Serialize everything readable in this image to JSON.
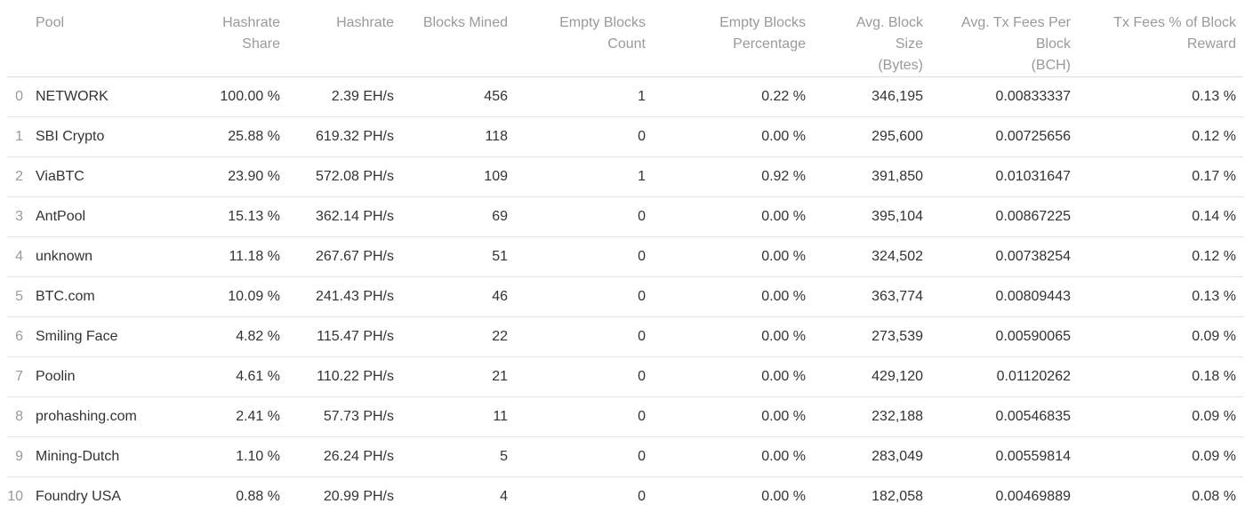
{
  "table": {
    "headers": {
      "index": "",
      "pool": "Pool",
      "hashrate_share": [
        "Hashrate",
        "Share"
      ],
      "hashrate": [
        "Hashrate"
      ],
      "blocks_mined": [
        "Blocks Mined"
      ],
      "empty_blocks_count": [
        "Empty Blocks",
        "Count"
      ],
      "empty_blocks_percentage": [
        "Empty Blocks",
        "Percentage"
      ],
      "avg_block_size": [
        "Avg. Block",
        "Size",
        "(Bytes)"
      ],
      "avg_tx_fees": [
        "Avg. Tx Fees Per",
        "Block",
        "(BCH)"
      ],
      "tx_fees_pct": [
        "Tx Fees % of Block",
        "Reward"
      ]
    },
    "rows": [
      {
        "idx": "0",
        "pool": "NETWORK",
        "share": "100.00 %",
        "hashrate": "2.39 EH/s",
        "blocks": "456",
        "empty": "1",
        "empty_pct": "0.22 %",
        "size": "346,195",
        "fees": "0.00833337",
        "fee_pct": "0.13 %"
      },
      {
        "idx": "1",
        "pool": "SBI Crypto",
        "share": "25.88 %",
        "hashrate": "619.32 PH/s",
        "blocks": "118",
        "empty": "0",
        "empty_pct": "0.00 %",
        "size": "295,600",
        "fees": "0.00725656",
        "fee_pct": "0.12 %"
      },
      {
        "idx": "2",
        "pool": "ViaBTC",
        "share": "23.90 %",
        "hashrate": "572.08 PH/s",
        "blocks": "109",
        "empty": "1",
        "empty_pct": "0.92 %",
        "size": "391,850",
        "fees": "0.01031647",
        "fee_pct": "0.17 %"
      },
      {
        "idx": "3",
        "pool": "AntPool",
        "share": "15.13 %",
        "hashrate": "362.14 PH/s",
        "blocks": "69",
        "empty": "0",
        "empty_pct": "0.00 %",
        "size": "395,104",
        "fees": "0.00867225",
        "fee_pct": "0.14 %"
      },
      {
        "idx": "4",
        "pool": "unknown",
        "share": "11.18 %",
        "hashrate": "267.67 PH/s",
        "blocks": "51",
        "empty": "0",
        "empty_pct": "0.00 %",
        "size": "324,502",
        "fees": "0.00738254",
        "fee_pct": "0.12 %"
      },
      {
        "idx": "5",
        "pool": "BTC.com",
        "share": "10.09 %",
        "hashrate": "241.43 PH/s",
        "blocks": "46",
        "empty": "0",
        "empty_pct": "0.00 %",
        "size": "363,774",
        "fees": "0.00809443",
        "fee_pct": "0.13 %"
      },
      {
        "idx": "6",
        "pool": "Smiling Face",
        "share": "4.82 %",
        "hashrate": "115.47 PH/s",
        "blocks": "22",
        "empty": "0",
        "empty_pct": "0.00 %",
        "size": "273,539",
        "fees": "0.00590065",
        "fee_pct": "0.09 %"
      },
      {
        "idx": "7",
        "pool": "Poolin",
        "share": "4.61 %",
        "hashrate": "110.22 PH/s",
        "blocks": "21",
        "empty": "0",
        "empty_pct": "0.00 %",
        "size": "429,120",
        "fees": "0.01120262",
        "fee_pct": "0.18 %"
      },
      {
        "idx": "8",
        "pool": "prohashing.com",
        "share": "2.41 %",
        "hashrate": "57.73 PH/s",
        "blocks": "11",
        "empty": "0",
        "empty_pct": "0.00 %",
        "size": "232,188",
        "fees": "0.00546835",
        "fee_pct": "0.09 %"
      },
      {
        "idx": "9",
        "pool": "Mining-Dutch",
        "share": "1.10 %",
        "hashrate": "26.24 PH/s",
        "blocks": "5",
        "empty": "0",
        "empty_pct": "0.00 %",
        "size": "283,049",
        "fees": "0.00559814",
        "fee_pct": "0.09 %"
      },
      {
        "idx": "10",
        "pool": "Foundry USA",
        "share": "0.88 %",
        "hashrate": "20.99 PH/s",
        "blocks": "4",
        "empty": "0",
        "empty_pct": "0.00 %",
        "size": "182,058",
        "fees": "0.00469889",
        "fee_pct": "0.08 %"
      }
    ]
  }
}
